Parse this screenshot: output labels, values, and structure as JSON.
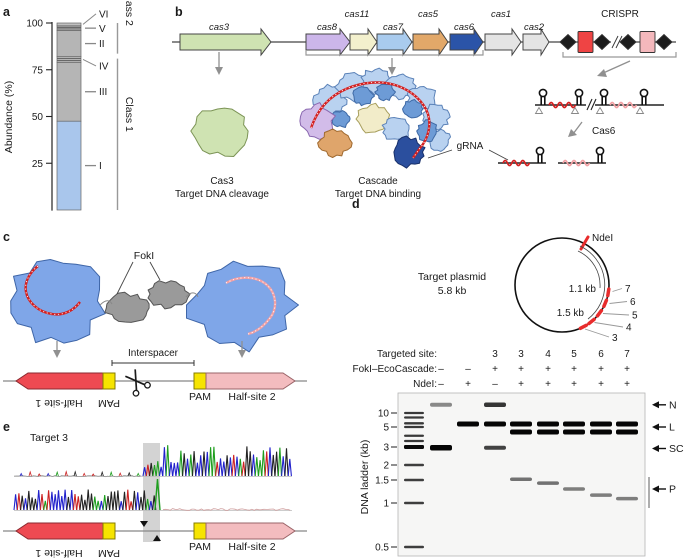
{
  "figure": {
    "panel_labels": {
      "a": "a",
      "b": "b",
      "c": "c",
      "d": "d",
      "e": "e"
    }
  },
  "chart_data": {
    "type": "bar",
    "ylabel": "Abundance (%)",
    "yticks": [
      100,
      75,
      50,
      25
    ],
    "ylim": [
      0,
      100
    ],
    "stack": [
      {
        "label": "I",
        "value": 47.5,
        "class": "Class 1",
        "color": "#a9c6ec",
        "striped": false,
        "label_dy": 0
      },
      {
        "label": "III",
        "value": 31.5,
        "class": "Class 1",
        "color": "#b5b5b5",
        "striped": false,
        "label_dy": 0
      },
      {
        "label": "IV",
        "value": 3.0,
        "class": "Class 1",
        "color": "#b5b5b5",
        "striped": true,
        "label_dy": 6.5
      },
      {
        "label": "II",
        "value": 14.0,
        "class": "Class 2",
        "color": "#b5b5b5",
        "striped": false,
        "label_dy": 0
      },
      {
        "label": "V",
        "value": 2.5,
        "class": "Class 2",
        "color": "#b5b5b5",
        "striped": true,
        "label_dy": 0.5
      },
      {
        "label": "VI",
        "value": 1.5,
        "class": "Class 2",
        "color": "#c0c0c0",
        "striped": false,
        "label_dy": -10.5
      }
    ],
    "classes": [
      {
        "label": "Class 2",
        "from": 82,
        "to": 100
      },
      {
        "label": "Class 1",
        "from": 0,
        "to": 82
      }
    ]
  },
  "panel_b": {
    "genes": [
      {
        "name": "cas3",
        "color": "#cfe3b2"
      },
      {
        "name": "cas8",
        "color": "#ccb6ea"
      },
      {
        "name": "cas11",
        "color": "#f3f0cd"
      },
      {
        "name": "cas7",
        "color": "#a9cbee"
      },
      {
        "name": "cas5",
        "color": "#e2a869"
      },
      {
        "name": "cas6",
        "color": "#2b54a8"
      },
      {
        "name": "cas1",
        "color": "#e4e4e4"
      },
      {
        "name": "cas2",
        "color": "#e4e4e4"
      }
    ],
    "crispr_label": "CRISPR",
    "cas3_name": "Cas3",
    "cas3_function": "Target DNA cleavage",
    "cascade_name": "Cascade",
    "cascade_function": "Target DNA binding",
    "grna_label": "gRNA",
    "cas6_step_label": "Cas6",
    "colors": {
      "repeat_diamond": "#1c1c1c",
      "spacer_red": "#ef4444",
      "spacer_pink": "#f4b8bc",
      "grna_red": "#d42020",
      "grna_pink": "#f2a0a4"
    },
    "cascade_colors": {
      "light": "#b9d2f0",
      "mid": "#6d9bd6",
      "purple": "#d2bce9",
      "orange": "#dfa56b",
      "cream": "#f2ecc9",
      "dark": "#2b4f9e",
      "blue": "#7fa6e8",
      "gray": "#9a9a9a",
      "cas3": "#cfe3b2"
    }
  },
  "panel_c": {
    "foki_label": "FokI",
    "interspacer_label": "Interspacer",
    "half_site_1": "Half-site 1",
    "pam_label": "PAM",
    "half_site_2": "Half-site 2",
    "colors": {
      "half_site_1_red": "#ee4a52",
      "pam_yellow": "#f6e400",
      "half_site_2_pink": "#f3bcbf"
    }
  },
  "panel_d": {
    "plasmid_name": "Target plasmid",
    "plasmid_size": "5.8 kb",
    "ndei_label": "NdeI",
    "arc_labels": [
      "1.1 kb",
      "1.5 kb"
    ],
    "site_labels": [
      "7",
      "6",
      "5",
      "4",
      "3"
    ],
    "gel_header": {
      "rows": [
        {
          "label": "Targeted site:",
          "values": [
            "",
            "",
            "3",
            "3",
            "4",
            "5",
            "6",
            "7"
          ]
        },
        {
          "label": "FokI–EcoCascade:",
          "values": [
            "–",
            "–",
            "+",
            "+",
            "+",
            "+",
            "+",
            "+"
          ]
        },
        {
          "label": "NdeI:",
          "values": [
            "–",
            "+",
            "–",
            "+",
            "+",
            "+",
            "+",
            "+"
          ]
        }
      ]
    },
    "gel": {
      "ladder_label": "DNA ladder (kb)",
      "ladder_ticks": [
        "10",
        "5",
        "3",
        "2",
        "1.5",
        "1",
        "0.5"
      ],
      "ladder_tick_kb": [
        10,
        5,
        3,
        2,
        1.5,
        1,
        0.5
      ],
      "ladder_bands": [
        10,
        8,
        6,
        5,
        4,
        3.5,
        3,
        2,
        1.5,
        1,
        0.5
      ],
      "lanes": [
        {
          "bands": [
            {
              "kb": 15,
              "a": 0.45,
              "h": 4
            },
            {
              "kb": 2.95,
              "a": 1,
              "h": 5.5
            }
          ]
        },
        {
          "bands": [
            {
              "kb": 5.8,
              "a": 1,
              "h": 5
            }
          ]
        },
        {
          "bands": [
            {
              "kb": 15,
              "a": 0.8,
              "h": 4.5
            },
            {
              "kb": 5.8,
              "a": 1,
              "h": 5
            },
            {
              "kb": 2.95,
              "a": 0.75,
              "h": 4
            }
          ]
        },
        {
          "bands": [
            {
              "kb": 5.8,
              "a": 1,
              "h": 5
            },
            {
              "kb": 4.4,
              "a": 1,
              "h": 5
            },
            {
              "kb": 1.52,
              "a": 0.55,
              "h": 3.5
            }
          ]
        },
        {
          "bands": [
            {
              "kb": 5.8,
              "a": 1,
              "h": 5
            },
            {
              "kb": 4.4,
              "a": 1,
              "h": 5
            },
            {
              "kb": 1.42,
              "a": 0.55,
              "h": 3.5
            }
          ]
        },
        {
          "bands": [
            {
              "kb": 5.8,
              "a": 1,
              "h": 5
            },
            {
              "kb": 4.4,
              "a": 1,
              "h": 5
            },
            {
              "kb": 1.28,
              "a": 0.5,
              "h": 3.5
            }
          ]
        },
        {
          "bands": [
            {
              "kb": 5.8,
              "a": 1,
              "h": 5
            },
            {
              "kb": 4.4,
              "a": 1,
              "h": 5
            },
            {
              "kb": 1.15,
              "a": 0.5,
              "h": 3.5
            }
          ]
        },
        {
          "bands": [
            {
              "kb": 5.8,
              "a": 1,
              "h": 5
            },
            {
              "kb": 4.4,
              "a": 1,
              "h": 5
            },
            {
              "kb": 1.08,
              "a": 0.5,
              "h": 3.5
            }
          ]
        }
      ],
      "annotations": [
        {
          "label": "N",
          "kb": 15
        },
        {
          "label": "L",
          "kb": 5
        },
        {
          "label": "SC",
          "kb": 2.9
        },
        {
          "label": "P",
          "kb": 1.28
        }
      ]
    }
  },
  "panel_e": {
    "title": "Target 3",
    "half_site_1": "Half-site 1",
    "pam_label": "PAM",
    "half_site_2": "Half-site 2",
    "trace_colors": [
      "#cc2222",
      "#1e9e1e",
      "#2222cc",
      "#222222"
    ]
  }
}
